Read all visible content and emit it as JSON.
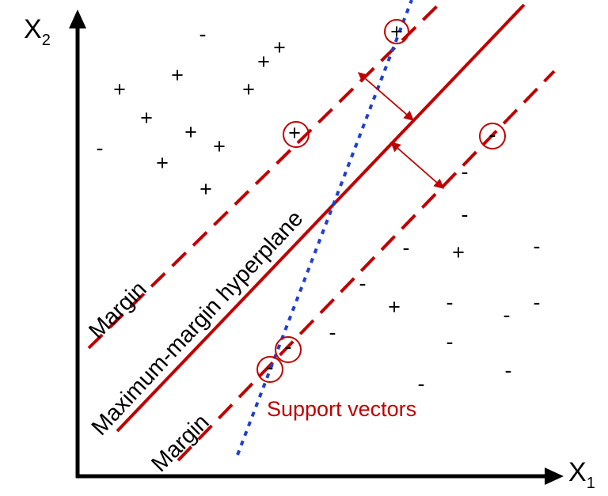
{
  "axes": {
    "x_label": "X",
    "x_subscript": "1",
    "y_label": "X",
    "y_subscript": "2"
  },
  "labels": {
    "hyperplane": "Maximum-margin hyperplane",
    "margin_upper": "Margin",
    "margin_lower": "Margin",
    "support_vectors": "Support vectors"
  },
  "symbols": {
    "positive": "+",
    "negative": "-"
  },
  "colors": {
    "hyperplane": "#c00000",
    "margin": "#c00000",
    "alt_boundary": "#1f3fd0",
    "support_circle": "#c00000",
    "support_label": "#c00000",
    "axes": "#000000"
  }
}
